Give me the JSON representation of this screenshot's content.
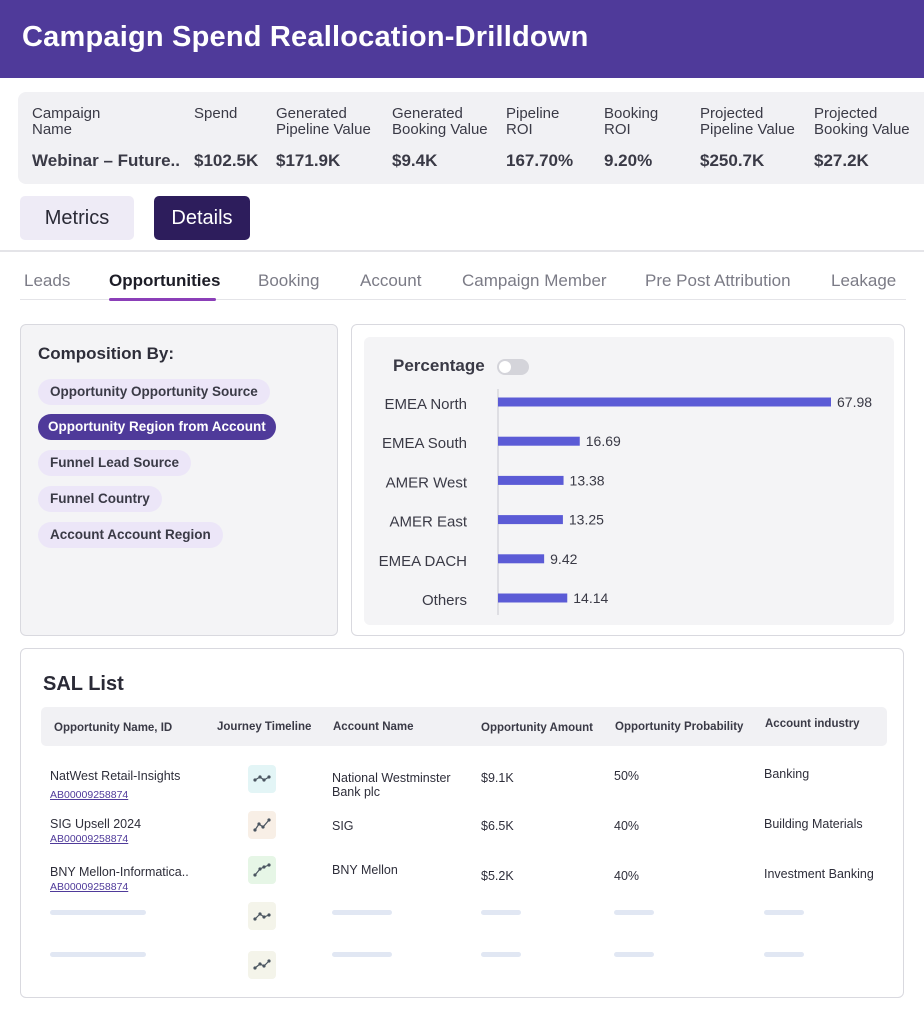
{
  "header": {
    "title": "Campaign Spend Reallocation-Drilldown"
  },
  "summary": [
    {
      "label": "Campaign\nName",
      "value": "Webinar – Future.."
    },
    {
      "label": "Spend",
      "value": "$102.5K"
    },
    {
      "label": "Generated\nPipeline Value",
      "value": "$171.9K"
    },
    {
      "label": "Generated\nBooking Value",
      "value": "$9.4K"
    },
    {
      "label": "Pipeline\nROI",
      "value": "167.70%"
    },
    {
      "label": "Booking\nROI",
      "value": "9.20%"
    },
    {
      "label": "Projected\nPipeline Value",
      "value": "$250.7K"
    },
    {
      "label": "Projected\nBooking Value",
      "value": "$27.2K"
    }
  ],
  "view_toggle": {
    "metrics": "Metrics",
    "details": "Details"
  },
  "tabs": [
    "Leads",
    "Opportunities",
    "Booking",
    "Account",
    "Campaign Member",
    "Pre Post Attribution",
    "Leakage"
  ],
  "active_tab": "Opportunities",
  "composition": {
    "title": "Composition By:",
    "options": [
      "Opportunity Opportunity Source",
      "Opportunity Region from Account",
      "Funnel Lead Source",
      "Funnel Country",
      "Account Account Region"
    ],
    "selected": "Opportunity Region from Account"
  },
  "chart_toggle": {
    "label": "Percentage",
    "on": false
  },
  "chart_data": {
    "type": "bar",
    "orientation": "horizontal",
    "categories": [
      "EMEA North",
      "EMEA South",
      "AMER West",
      "AMER East",
      "EMEA DACH",
      "Others"
    ],
    "values": [
      67.98,
      16.69,
      13.38,
      13.25,
      9.42,
      14.14
    ],
    "color": "#5b5bd6"
  },
  "sal": {
    "title": "SAL List",
    "columns": [
      "Opportunity Name, ID",
      "Journey Timeline",
      "Account Name",
      "Opportunity Amount",
      "Opportunity Probability",
      "Account industry"
    ],
    "rows": [
      {
        "name": "NatWest Retail-Insights",
        "id": "AB00009258874",
        "account": "National Westminster\nBank plc",
        "amount": "$9.1K",
        "probability": "50%",
        "industry": "Banking"
      },
      {
        "name": "SIG Upsell 2024",
        "id": "AB00009258874",
        "account": "SIG",
        "amount": "$6.5K",
        "probability": "40%",
        "industry": "Building Materials"
      },
      {
        "name": "BNY Mellon-Informatica..",
        "id": "AB00009258874",
        "account": "BNY Mellon",
        "amount": "$5.2K",
        "probability": "40%",
        "industry": "Investment Banking"
      }
    ]
  },
  "colors": {
    "brand": "#4f3a9a",
    "dark": "#2d1d5c",
    "bar": "#5b5bd6",
    "tab_underline": "#8b3fb8"
  }
}
